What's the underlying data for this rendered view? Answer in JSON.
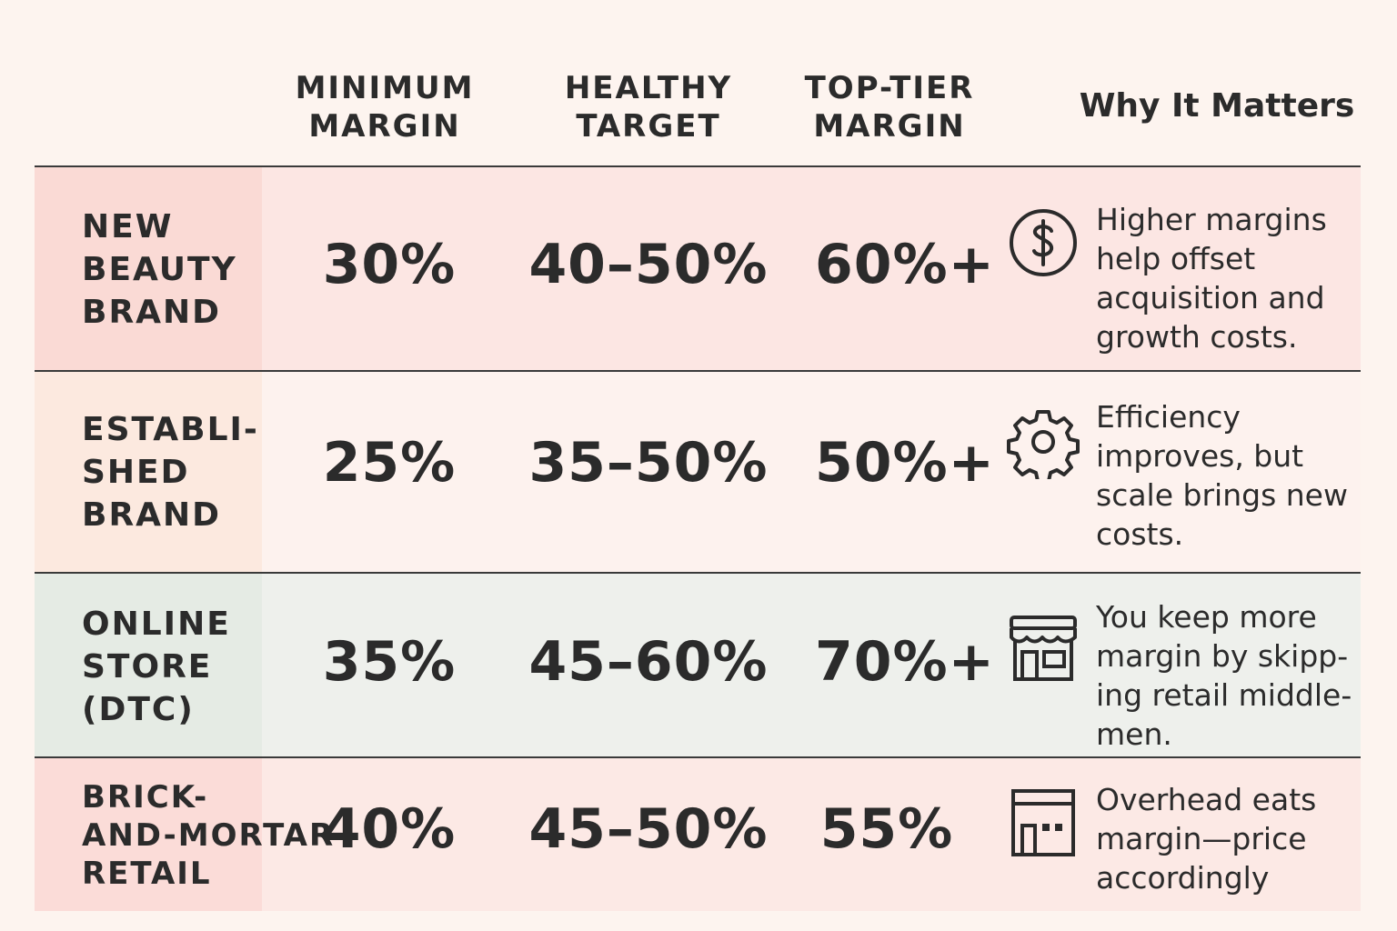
{
  "header": {
    "columns": [
      "MINIMUM\nMARGIN",
      "HEALTHY\nTARGET",
      "TOP-TIER\nMARGIN"
    ],
    "why": "Why It Matters"
  },
  "rows": [
    {
      "label": "NEW\nBEAUTY\nBRAND",
      "minimum": "30%",
      "healthy": "40–50%",
      "top": "60%+",
      "icon": "dollar-icon",
      "desc": "Higher margins\nhelp offset\nacquisition  and\ngrowth costs."
    },
    {
      "label": "ESTABLI-\nSHED\nBRAND",
      "minimum": "25%",
      "healthy": "35–50%",
      "top": "50%+",
      "icon": "gear-icon",
      "desc": "Efficiency\nimproves, but\nscale brings new\ncosts."
    },
    {
      "label": "ONLINE\nSTORE\n(DTC)",
      "minimum": "35%",
      "healthy": "45–60%",
      "top": "70%+",
      "icon": "storefront-icon",
      "desc": "You keep more\nmargin by skipp-\ning retail middle-\nmen."
    },
    {
      "label": "BRICK-\nAND-MORTAR\nRETAIL",
      "minimum": "40%",
      "healthy": "45–50%",
      "top": "55%",
      "icon": "shop-building-icon",
      "desc": "Overhead eats\nmargin—price\naccordingly"
    }
  ]
}
